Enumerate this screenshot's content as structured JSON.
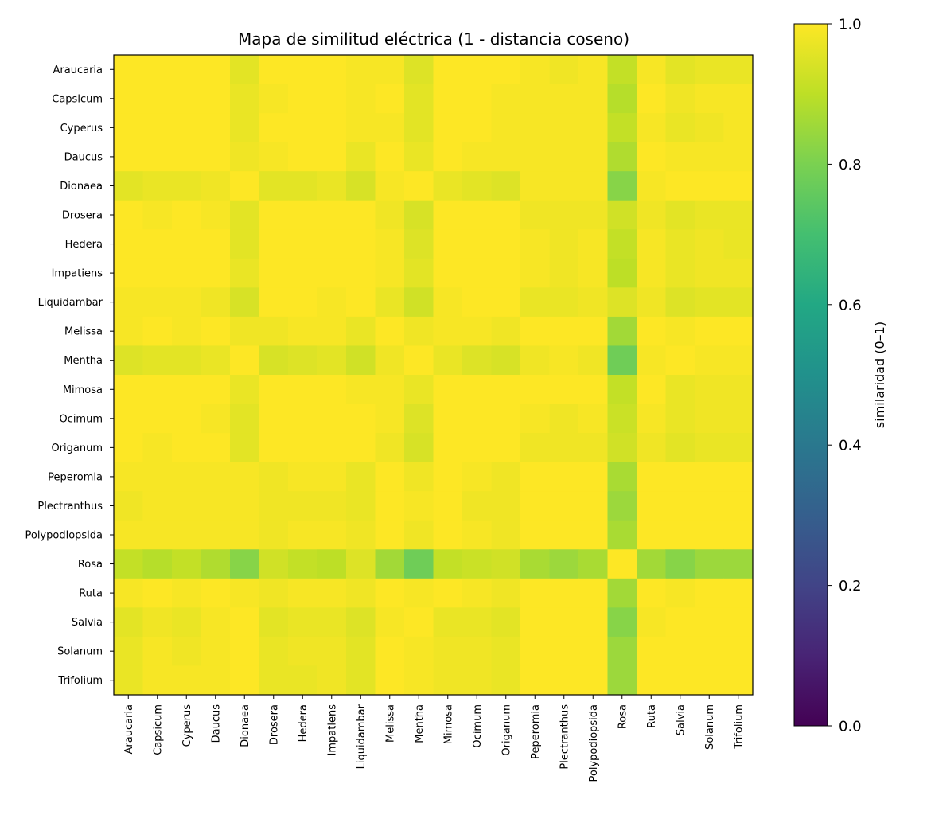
{
  "chart_data": {
    "type": "heatmap",
    "title": "Mapa de similitud eléctrica (1 - distancia coseno)",
    "xlabel": "",
    "ylabel": "",
    "colormap": "viridis",
    "vmin": 0.0,
    "vmax": 1.0,
    "colorbar": {
      "label": "similaridad (0–1)",
      "ticks": [
        "0.0",
        "0.2",
        "0.4",
        "0.6",
        "0.8",
        "1.0"
      ],
      "tick_values": [
        0,
        0.2,
        0.4,
        0.6,
        0.8,
        1.0
      ]
    },
    "labels": [
      "Araucaria",
      "Capsicum",
      "Cyperus",
      "Daucus",
      "Dionaea",
      "Drosera",
      "Hedera",
      "Impatiens",
      "Liquidambar",
      "Melissa",
      "Mentha",
      "Mimosa",
      "Ocimum",
      "Origanum",
      "Peperomia",
      "Plectranthus",
      "Polypodiopsida",
      "Rosa",
      "Ruta",
      "Salvia",
      "Solanum",
      "Trifolium"
    ],
    "matrix": [
      [
        1,
        1,
        1,
        1,
        0.96,
        1,
        1,
        1,
        0.99,
        0.99,
        0.95,
        1,
        1,
        1,
        0.99,
        0.98,
        0.99,
        0.91,
        0.99,
        0.96,
        0.97,
        0.97
      ],
      [
        1,
        1,
        1,
        1,
        0.97,
        0.99,
        1,
        1,
        0.99,
        1,
        0.96,
        1,
        1,
        0.99,
        0.99,
        0.99,
        0.99,
        0.89,
        1,
        0.98,
        0.99,
        0.99
      ],
      [
        1,
        1,
        1,
        1,
        0.97,
        1,
        1,
        1,
        0.99,
        0.99,
        0.96,
        1,
        1,
        0.99,
        0.99,
        0.99,
        0.99,
        0.91,
        0.99,
        0.97,
        0.98,
        0.99
      ],
      [
        1,
        1,
        1,
        1,
        0.98,
        0.99,
        1,
        1,
        0.97,
        1,
        0.97,
        1,
        0.99,
        0.99,
        0.99,
        0.99,
        0.99,
        0.88,
        1,
        0.99,
        0.99,
        0.99
      ],
      [
        0.96,
        0.97,
        0.97,
        0.98,
        1,
        0.96,
        0.96,
        0.97,
        0.94,
        0.99,
        1,
        0.97,
        0.96,
        0.95,
        0.99,
        0.99,
        0.99,
        0.82,
        0.99,
        1,
        1,
        1
      ],
      [
        1,
        0.99,
        1,
        0.99,
        0.96,
        1,
        1,
        1,
        1,
        0.98,
        0.94,
        1,
        1,
        1,
        0.98,
        0.98,
        0.98,
        0.93,
        0.98,
        0.96,
        0.97,
        0.97
      ],
      [
        1,
        1,
        1,
        1,
        0.96,
        1,
        1,
        1,
        1,
        0.99,
        0.95,
        1,
        1,
        1,
        0.99,
        0.98,
        0.99,
        0.91,
        0.99,
        0.97,
        0.98,
        0.97
      ],
      [
        1,
        1,
        1,
        1,
        0.97,
        1,
        1,
        1,
        1,
        0.99,
        0.96,
        1,
        1,
        1,
        0.99,
        0.98,
        0.99,
        0.9,
        0.99,
        0.97,
        0.98,
        0.98
      ],
      [
        0.99,
        0.99,
        0.99,
        0.98,
        0.94,
        1,
        1,
        0.99,
        1,
        0.97,
        0.93,
        0.99,
        1,
        1,
        0.97,
        0.97,
        0.98,
        0.95,
        0.98,
        0.95,
        0.96,
        0.96
      ],
      [
        0.99,
        1,
        0.99,
        1,
        0.98,
        0.98,
        0.99,
        0.99,
        0.97,
        1,
        0.98,
        0.99,
        0.99,
        0.98,
        1,
        1,
        1,
        0.86,
        1,
        0.99,
        1,
        1
      ],
      [
        0.95,
        0.96,
        0.96,
        0.97,
        1,
        0.94,
        0.95,
        0.96,
        0.93,
        0.98,
        1,
        0.97,
        0.95,
        0.94,
        0.98,
        0.99,
        0.98,
        0.78,
        0.99,
        1,
        0.99,
        0.99
      ],
      [
        1,
        1,
        1,
        1,
        0.97,
        1,
        1,
        1,
        0.99,
        0.99,
        0.97,
        1,
        1,
        1,
        1,
        1,
        1,
        0.91,
        1,
        0.97,
        0.98,
        0.98
      ],
      [
        1,
        1,
        1,
        0.99,
        0.96,
        1,
        1,
        1,
        1,
        0.99,
        0.95,
        1,
        1,
        1,
        0.99,
        0.98,
        0.99,
        0.92,
        0.99,
        0.97,
        0.98,
        0.98
      ],
      [
        1,
        0.99,
        1,
        1,
        0.96,
        1,
        1,
        1,
        1,
        0.98,
        0.94,
        1,
        1,
        1,
        0.98,
        0.98,
        0.98,
        0.93,
        0.98,
        0.96,
        0.97,
        0.97
      ],
      [
        0.99,
        0.99,
        0.99,
        0.99,
        0.99,
        0.98,
        0.99,
        0.99,
        0.97,
        1,
        0.98,
        1,
        0.99,
        0.98,
        1,
        1,
        1,
        0.87,
        1,
        1,
        1,
        1
      ],
      [
        0.98,
        0.99,
        0.99,
        0.99,
        0.99,
        0.98,
        0.98,
        0.98,
        0.97,
        1,
        0.99,
        1,
        0.98,
        0.98,
        1,
        1,
        1,
        0.85,
        1,
        1,
        1,
        1
      ],
      [
        0.99,
        0.99,
        0.99,
        0.99,
        0.99,
        0.98,
        0.99,
        0.99,
        0.98,
        1,
        0.98,
        1,
        0.99,
        0.98,
        1,
        1,
        1,
        0.87,
        1,
        1,
        1,
        1
      ],
      [
        0.91,
        0.89,
        0.91,
        0.88,
        0.82,
        0.93,
        0.91,
        0.9,
        0.95,
        0.86,
        0.78,
        0.91,
        0.92,
        0.93,
        0.87,
        0.85,
        0.87,
        1,
        0.86,
        0.82,
        0.85,
        0.85
      ],
      [
        0.99,
        1,
        0.99,
        1,
        0.99,
        0.98,
        0.99,
        0.99,
        0.98,
        1,
        0.99,
        1,
        0.99,
        0.98,
        1,
        1,
        1,
        0.86,
        1,
        0.99,
        1,
        1
      ],
      [
        0.96,
        0.98,
        0.97,
        0.99,
        1,
        0.96,
        0.97,
        0.97,
        0.95,
        0.99,
        1,
        0.97,
        0.97,
        0.96,
        1,
        1,
        1,
        0.82,
        0.99,
        1,
        1,
        1
      ],
      [
        0.97,
        0.99,
        0.98,
        0.99,
        1,
        0.97,
        0.98,
        0.98,
        0.96,
        1,
        0.99,
        0.98,
        0.98,
        0.97,
        1,
        1,
        1,
        0.85,
        1,
        1,
        1,
        1
      ],
      [
        0.97,
        0.99,
        0.99,
        0.99,
        1,
        0.97,
        0.97,
        0.98,
        0.96,
        1,
        0.99,
        0.98,
        0.98,
        0.97,
        1,
        1,
        1,
        0.85,
        1,
        1,
        1,
        1
      ]
    ]
  }
}
